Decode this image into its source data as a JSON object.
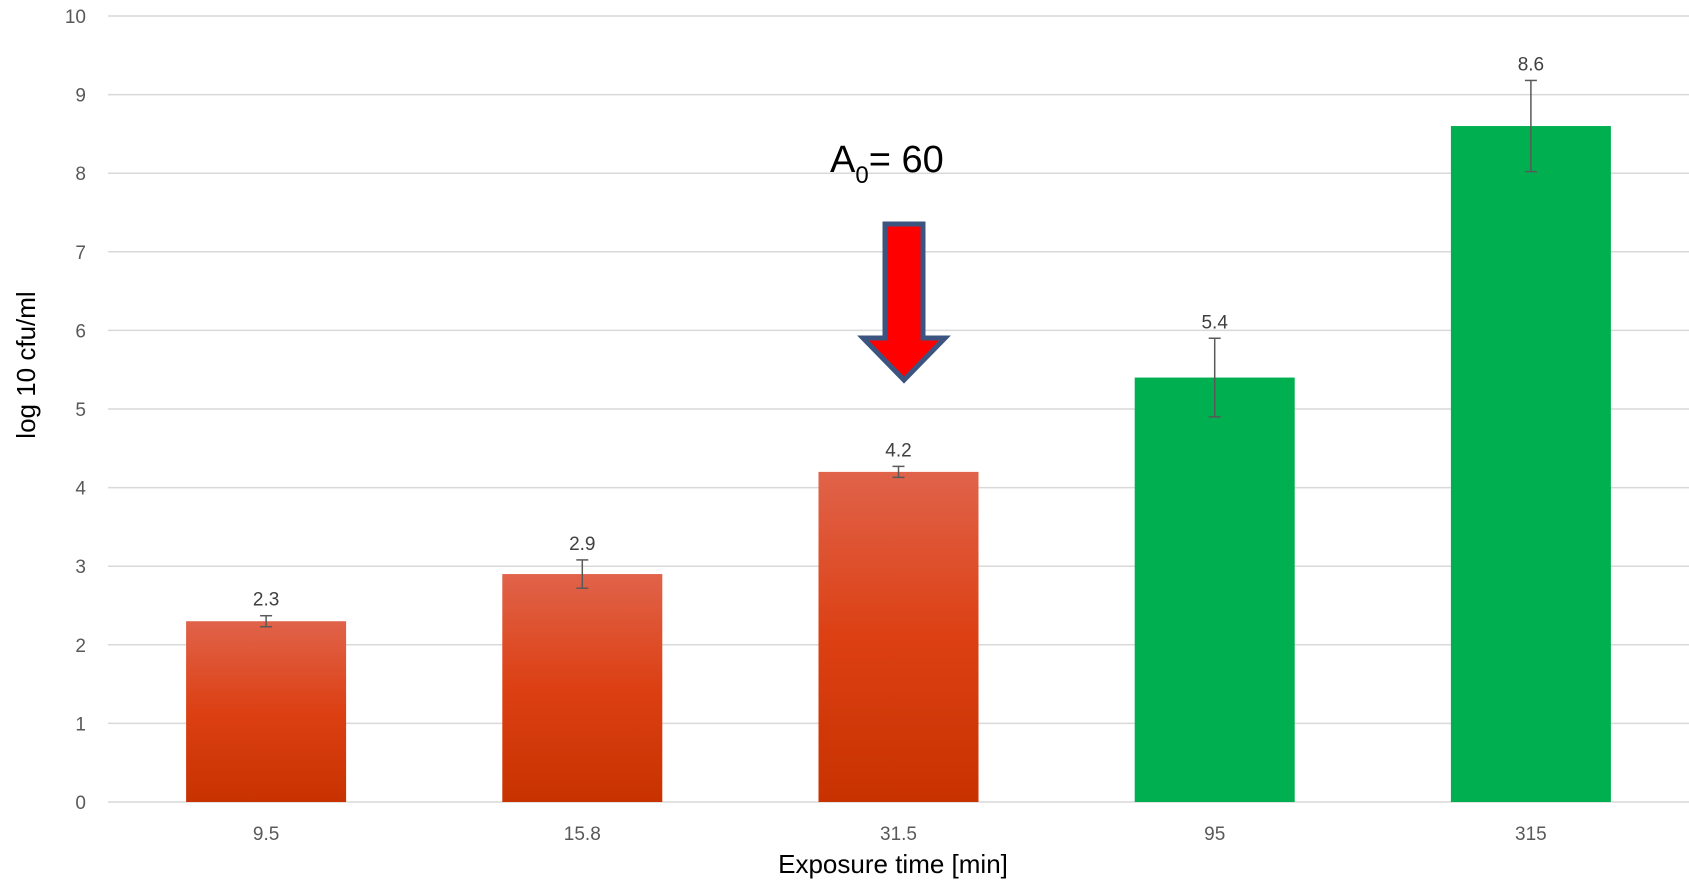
{
  "chart_data": {
    "type": "bar",
    "title": "",
    "xlabel": "Exposure time [min]",
    "ylabel": "log 10 cfu/ml",
    "ylim": [
      0,
      10
    ],
    "yticks": [
      "0",
      "1",
      "2",
      "3",
      "4",
      "5",
      "6",
      "7",
      "8",
      "9",
      "10"
    ],
    "grid": true,
    "categories": [
      "9.5",
      "15.8",
      "31.5",
      "95",
      "315"
    ],
    "values": [
      2.3,
      2.9,
      4.2,
      5.4,
      8.6
    ],
    "data_labels": [
      "2.3",
      "2.9",
      "4.2",
      "5.4",
      "8.6"
    ],
    "errors": [
      0.07,
      0.18,
      0.07,
      0.5,
      0.58
    ],
    "bar_colors": [
      "red-gradient",
      "red-gradient",
      "red-gradient",
      "#00b050",
      "#00b050"
    ],
    "colors": {
      "red_top": "#e0634a",
      "red_mid": "#dc4013",
      "red_bottom": "#c83200",
      "green": "#00b050",
      "arrow_fill": "#ff0000",
      "arrow_stroke": "#3b5580",
      "grid": "#d9d9d9"
    },
    "annotation": {
      "main": "A",
      "sub": "0",
      "rest": "= 60",
      "arrow_icon": "down-arrow-icon",
      "category_index": 2
    }
  }
}
